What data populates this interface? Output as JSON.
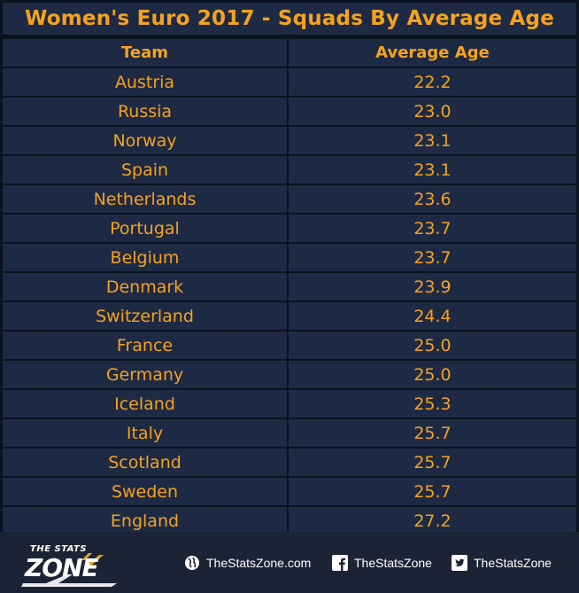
{
  "title": "Women's Euro 2017 - Squads By Average Age",
  "chart_data": {
    "type": "table",
    "columns": [
      "Team",
      "Average Age"
    ],
    "rows": [
      [
        "Austria",
        "22.2"
      ],
      [
        "Russia",
        "23.0"
      ],
      [
        "Norway",
        "23.1"
      ],
      [
        "Spain",
        "23.1"
      ],
      [
        "Netherlands",
        "23.6"
      ],
      [
        "Portugal",
        "23.7"
      ],
      [
        "Belgium",
        "23.7"
      ],
      [
        "Denmark",
        "23.9"
      ],
      [
        "Switzerland",
        "24.4"
      ],
      [
        "France",
        "25.0"
      ],
      [
        "Germany",
        "25.0"
      ],
      [
        "Iceland",
        "25.3"
      ],
      [
        "Italy",
        "25.7"
      ],
      [
        "Scotland",
        "25.7"
      ],
      [
        "Sweden",
        "25.7"
      ],
      [
        "England",
        "27.2"
      ]
    ]
  },
  "footer": {
    "logo_small": "THE STATS",
    "logo_big": "ZONE",
    "website": "TheStatsZone.com",
    "facebook": "TheStatsZone",
    "twitter": "TheStatsZone"
  },
  "colors": {
    "accent": "#f4a21f",
    "cell_bg": "#1e2a44",
    "grid": "#0b1220",
    "footer_bg": "#1b2435"
  }
}
